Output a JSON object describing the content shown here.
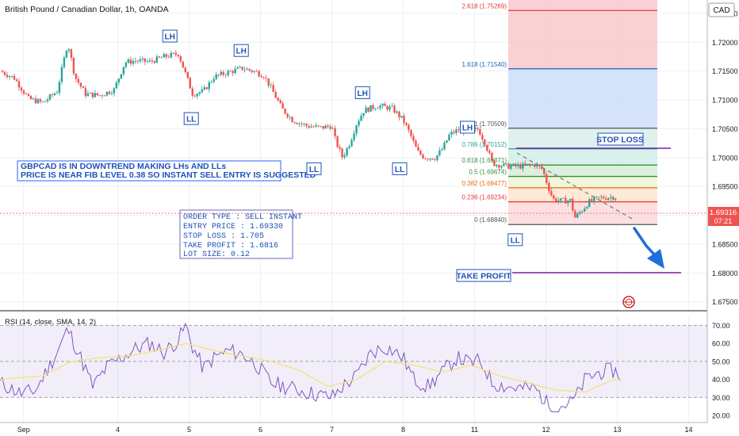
{
  "header": {
    "symbol_title": "British Pound / Canadian Dollar, 1h, OANDA",
    "currency": "CAD"
  },
  "price_axis": {
    "ticks": [
      "1.72500",
      "1.72000",
      "1.71500",
      "1.71000",
      "1.70500",
      "1.70000",
      "1.69500",
      "1.69000",
      "1.68500",
      "1.68000",
      "1.67500"
    ]
  },
  "price_badge": {
    "value": "1.69316",
    "countdown": "07:21"
  },
  "annotations": {
    "note_line1": "GBPCAD IS IN DOWNTREND MAKING LHs AND LLs",
    "note_line2": "PRICE IS NEAR FIB LEVEL 0.38 SO INSTANT SELL ENTRY IS SUGGESTED",
    "order_type": "ORDER TYPE :  SELL INSTANT",
    "entry_price": "ENTRY PRICE : 1.69330",
    "stop_loss": "STOP LOSS : 1.705",
    "take_profit": "TAKE PROFIT :  1.6816",
    "lot_size": "LOT SIZE: 0.12",
    "stop_loss_label": "STOP LOSS",
    "take_profit_label": "TAKE PROFIT",
    "swing_labels": [
      {
        "text": "LH",
        "price": 1.721,
        "t": 23.8
      },
      {
        "text": "LL",
        "price": 1.7067,
        "t": 26.8
      },
      {
        "text": "LH",
        "price": 1.7185,
        "t": 33.8
      },
      {
        "text": "LL",
        "price": 1.698,
        "t": 44.0
      },
      {
        "text": "LH",
        "price": 1.7112,
        "t": 50.8
      },
      {
        "text": "LL",
        "price": 1.698,
        "t": 56.0
      },
      {
        "text": "LH",
        "price": 1.7052,
        "t": 65.5
      },
      {
        "text": "LL",
        "price": 1.6857,
        "t": 72.2
      }
    ]
  },
  "fib": {
    "labels": [
      {
        "text": "2.618 (1.75269)",
        "price": 1.7255,
        "color": "#e53935"
      },
      {
        "text": "1.618 (1.71540)",
        "price": 1.7154,
        "color": "#1565c0"
      },
      {
        "text": "1 (1.70509)",
        "price": 1.70509,
        "color": "#555555"
      },
      {
        "text": "0.786 (1.70152)",
        "price": 1.70152,
        "color": "#26a69a"
      },
      {
        "text": "0.618 (1.69871)",
        "price": 1.69871,
        "color": "#388e3c"
      },
      {
        "text": "0.5 (1.69674)",
        "price": 1.69674,
        "color": "#388e3c"
      },
      {
        "text": "0.382 (1.69477)",
        "price": 1.69477,
        "color": "#ef6c00"
      },
      {
        "text": "0.236 (1.69234)",
        "price": 1.69234,
        "color": "#e53935"
      },
      {
        "text": "0 (1.68840)",
        "price": 1.6884,
        "color": "#555555"
      }
    ]
  },
  "rsi": {
    "title": "RSI (14, close, SMA, 14, 2)",
    "ticks": [
      "70.00",
      "60.00",
      "50.00",
      "40.00",
      "30.00",
      "20.00"
    ]
  },
  "chart_data": {
    "type": "candlestick",
    "title": "British Pound / Canadian Dollar, 1h, OANDA",
    "y_unit": "CAD",
    "ylim": [
      1.674,
      1.7265
    ],
    "x_tick_labels": [
      {
        "label": "Sep",
        "t": 3.3
      },
      {
        "label": "4",
        "t": 16.5
      },
      {
        "label": "5",
        "t": 26.5
      },
      {
        "label": "6",
        "t": 36.5
      },
      {
        "label": "7",
        "t": 46.5
      },
      {
        "label": "8",
        "t": 56.5
      },
      {
        "label": "11",
        "t": 66.5
      },
      {
        "label": "12",
        "t": 76.5
      },
      {
        "label": "13",
        "t": 86.5
      },
      {
        "label": "14",
        "t": 96.5
      }
    ],
    "price_path": [
      [
        0,
        1.715
      ],
      [
        2,
        1.7138
      ],
      [
        4,
        1.7102
      ],
      [
        6,
        1.7095
      ],
      [
        8,
        1.7115
      ],
      [
        9.5,
        1.72
      ],
      [
        10.5,
        1.714
      ],
      [
        12,
        1.711
      ],
      [
        14,
        1.7108
      ],
      [
        16,
        1.7118
      ],
      [
        17.5,
        1.7165
      ],
      [
        19,
        1.7168
      ],
      [
        21,
        1.7166
      ],
      [
        23,
        1.7175
      ],
      [
        25,
        1.718
      ],
      [
        26,
        1.7145
      ],
      [
        27,
        1.711
      ],
      [
        28.5,
        1.7115
      ],
      [
        30,
        1.714
      ],
      [
        32,
        1.7148
      ],
      [
        34,
        1.7155
      ],
      [
        36,
        1.7148
      ],
      [
        37,
        1.7142
      ],
      [
        38,
        1.712
      ],
      [
        39.5,
        1.7085
      ],
      [
        41,
        1.7065
      ],
      [
        43,
        1.7055
      ],
      [
        45,
        1.7052
      ],
      [
        46.5,
        1.7055
      ],
      [
        47,
        1.703
      ],
      [
        48,
        1.7
      ],
      [
        49,
        1.7025
      ],
      [
        50,
        1.706
      ],
      [
        51,
        1.7082
      ],
      [
        53,
        1.709
      ],
      [
        55,
        1.7085
      ],
      [
        56.5,
        1.7065
      ],
      [
        57.5,
        1.704
      ],
      [
        58.5,
        1.701
      ],
      [
        59.5,
        1.7
      ],
      [
        61,
        1.7
      ],
      [
        62,
        1.7015
      ],
      [
        63,
        1.704
      ],
      [
        64.5,
        1.705
      ],
      [
        66,
        1.7045
      ],
      [
        67,
        1.705
      ],
      [
        68,
        1.7025
      ],
      [
        69,
        1.699
      ],
      [
        71,
        1.6985
      ],
      [
        73,
        1.6985
      ],
      [
        75,
        1.6988
      ],
      [
        76,
        1.698
      ],
      [
        76.8,
        1.695
      ],
      [
        77.5,
        1.6928
      ],
      [
        78.5,
        1.6925
      ],
      [
        80,
        1.6926
      ],
      [
        80.5,
        1.6895
      ],
      [
        81.5,
        1.6908
      ],
      [
        82.5,
        1.6923
      ],
      [
        84,
        1.693
      ],
      [
        86,
        1.6932
      ],
      [
        86.5,
        1.69316
      ]
    ],
    "rsi_path": [
      [
        0,
        38
      ],
      [
        3,
        32
      ],
      [
        5,
        34
      ],
      [
        8,
        55
      ],
      [
        9.5,
        68
      ],
      [
        11,
        55
      ],
      [
        13,
        36
      ],
      [
        15,
        47
      ],
      [
        17,
        52
      ],
      [
        19,
        57
      ],
      [
        21,
        60
      ],
      [
        23,
        55
      ],
      [
        25,
        62
      ],
      [
        26,
        70
      ],
      [
        27,
        58
      ],
      [
        28.5,
        46
      ],
      [
        30,
        52
      ],
      [
        32,
        56
      ],
      [
        34,
        54
      ],
      [
        36,
        48
      ],
      [
        38,
        38
      ],
      [
        40,
        36
      ],
      [
        42,
        34
      ],
      [
        44,
        32
      ],
      [
        46.5,
        30
      ],
      [
        48,
        36
      ],
      [
        50,
        42
      ],
      [
        52,
        55
      ],
      [
        54,
        58
      ],
      [
        55,
        56
      ],
      [
        56.5,
        52
      ],
      [
        58,
        40
      ],
      [
        60,
        36
      ],
      [
        62,
        44
      ],
      [
        64,
        52
      ],
      [
        66,
        49
      ],
      [
        67,
        50
      ],
      [
        68,
        46
      ],
      [
        69,
        38
      ],
      [
        71,
        36
      ],
      [
        73,
        35
      ],
      [
        75,
        35
      ],
      [
        76,
        30
      ],
      [
        77,
        25
      ],
      [
        78,
        24
      ],
      [
        79,
        26
      ],
      [
        80,
        27
      ],
      [
        81,
        32
      ],
      [
        82,
        40
      ],
      [
        84,
        44
      ],
      [
        86,
        45
      ],
      [
        87,
        42
      ]
    ],
    "rsi_sma_path": [
      [
        0,
        40
      ],
      [
        6,
        42
      ],
      [
        10,
        50
      ],
      [
        14,
        52
      ],
      [
        18,
        53
      ],
      [
        22,
        56
      ],
      [
        26,
        60
      ],
      [
        30,
        56
      ],
      [
        34,
        53
      ],
      [
        38,
        50
      ],
      [
        42,
        45
      ],
      [
        46,
        36
      ],
      [
        50,
        40
      ],
      [
        54,
        50
      ],
      [
        58,
        48
      ],
      [
        62,
        44
      ],
      [
        66,
        48
      ],
      [
        70,
        42
      ],
      [
        74,
        38
      ],
      [
        78,
        34
      ],
      [
        82,
        33
      ],
      [
        86,
        40
      ],
      [
        87,
        40
      ]
    ],
    "rsi_levels": {
      "upper": 70,
      "middle": 50,
      "lower": 30
    }
  }
}
